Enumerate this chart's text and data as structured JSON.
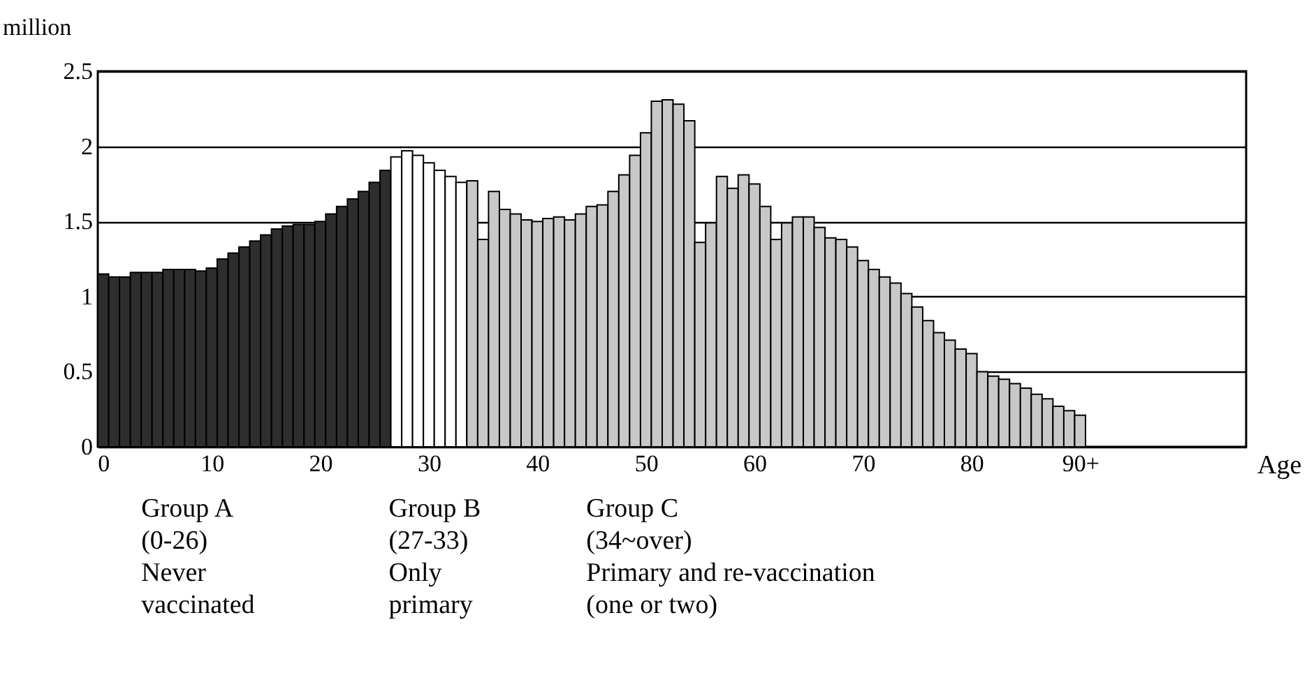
{
  "chart_data": {
    "type": "bar",
    "ylabel": "million",
    "xlabel": "Age",
    "xlim": [
      -0.5,
      105.3
    ],
    "xticks": [
      0,
      10,
      20,
      30,
      40,
      50,
      60,
      70,
      80,
      {
        "value": 90,
        "label": "90+"
      }
    ],
    "ylim": [
      0,
      2.5
    ],
    "yticks": [
      0,
      0.5,
      1,
      1.5,
      2,
      2.5
    ],
    "grid": "y",
    "series": [
      {
        "color": "#2e2e2e",
        "x": [
          0,
          1,
          2,
          3,
          4,
          5,
          6,
          7,
          8,
          9,
          10,
          11,
          12,
          13,
          14,
          15,
          16,
          17,
          18,
          19,
          20,
          21,
          22,
          23,
          24,
          25,
          26
        ],
        "values": [
          1.15,
          1.13,
          1.13,
          1.16,
          1.16,
          1.16,
          1.18,
          1.18,
          1.18,
          1.17,
          1.19,
          1.25,
          1.29,
          1.33,
          1.37,
          1.41,
          1.45,
          1.47,
          1.48,
          1.48,
          1.5,
          1.55,
          1.6,
          1.65,
          1.7,
          1.76,
          1.84
        ]
      },
      {
        "color": "#ffffff",
        "x": [
          27,
          28,
          29,
          30,
          31,
          32,
          33
        ],
        "values": [
          1.93,
          1.97,
          1.94,
          1.89,
          1.84,
          1.8,
          1.76
        ]
      },
      {
        "color": "#c8c8c8",
        "x": [
          34,
          35,
          36,
          37,
          38,
          39,
          40,
          41,
          42,
          43,
          44,
          45,
          46,
          47,
          48,
          49,
          50,
          51,
          52,
          53,
          54,
          55,
          56,
          57,
          58,
          59,
          60,
          61,
          62,
          63,
          64,
          65,
          66,
          67,
          68,
          69,
          70,
          71,
          72,
          73,
          74,
          75,
          76,
          77,
          78,
          79,
          80,
          81,
          82,
          83,
          84,
          85,
          86,
          87,
          88,
          89,
          90
        ],
        "values": [
          1.77,
          1.38,
          1.7,
          1.58,
          1.55,
          1.51,
          1.5,
          1.52,
          1.53,
          1.51,
          1.55,
          1.6,
          1.61,
          1.7,
          1.81,
          1.94,
          2.09,
          2.3,
          2.31,
          2.28,
          2.17,
          1.36,
          1.49,
          1.8,
          1.72,
          1.81,
          1.75,
          1.6,
          1.38,
          1.49,
          1.53,
          1.53,
          1.46,
          1.39,
          1.38,
          1.33,
          1.24,
          1.18,
          1.13,
          1.09,
          1.02,
          0.93,
          0.84,
          0.76,
          0.71,
          0.65,
          0.62,
          0.5,
          0.47,
          0.45,
          0.42,
          0.39,
          0.35,
          0.32,
          0.27,
          0.24,
          0.21
        ]
      }
    ],
    "annotations": [
      "Group A\n(0-26)\nNever\nvaccinated",
      "Group B\n(27-33)\nOnly\nprimary",
      "Group C\n(34~over)\nPrimary and re-vaccination\n(one or two)"
    ]
  }
}
